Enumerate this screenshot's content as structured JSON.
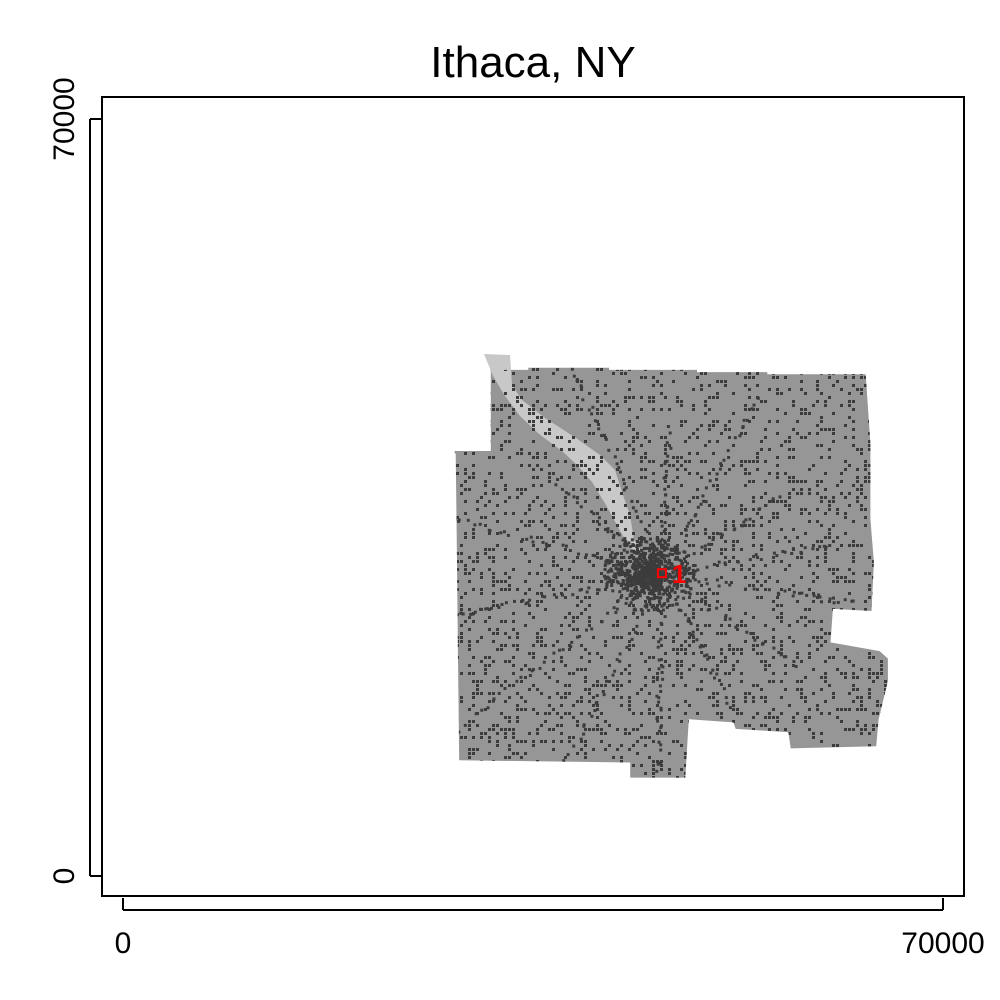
{
  "title": "Ithaca, NY",
  "axes": {
    "x": {
      "min": 0,
      "max": 70000,
      "ticks": [
        "0",
        "70000"
      ]
    },
    "y": {
      "min": 0,
      "max": 70000,
      "ticks": [
        "0",
        "70000"
      ]
    }
  },
  "marker": {
    "label": "1",
    "color": "#ff0000"
  },
  "colors": {
    "region_fill": "#969696",
    "developed": "#3c3c3c",
    "lake": "#c8c8c8",
    "frame": "#000000"
  },
  "chart_data": {
    "type": "map",
    "title": "Ithaca, NY",
    "xlim": [
      0,
      70000
    ],
    "ylim": [
      0,
      70000
    ],
    "xticks": [
      0,
      70000
    ],
    "yticks": [
      0,
      70000
    ],
    "point": {
      "label": "1",
      "x": 46000,
      "y": 28000
    },
    "region_outline": [
      [
        31400,
        46800
      ],
      [
        34600,
        46800
      ],
      [
        34600,
        47000
      ],
      [
        41500,
        47000
      ],
      [
        41500,
        46800
      ],
      [
        49000,
        46800
      ],
      [
        49000,
        46600
      ],
      [
        55000,
        46600
      ],
      [
        55000,
        46400
      ],
      [
        63400,
        46400
      ],
      [
        63800,
        40000
      ],
      [
        63800,
        33000
      ],
      [
        64100,
        29000
      ],
      [
        63900,
        24500
      ],
      [
        60600,
        24700
      ],
      [
        60400,
        21600
      ],
      [
        64600,
        20800
      ],
      [
        65300,
        20100
      ],
      [
        65300,
        18000
      ],
      [
        64500,
        14500
      ],
      [
        64300,
        12000
      ],
      [
        57000,
        11800
      ],
      [
        56800,
        13300
      ],
      [
        52300,
        13600
      ],
      [
        52100,
        14200
      ],
      [
        48300,
        14500
      ],
      [
        48000,
        9100
      ],
      [
        43300,
        9100
      ],
      [
        43300,
        10500
      ],
      [
        28700,
        10700
      ],
      [
        28600,
        20000
      ],
      [
        28500,
        30000
      ],
      [
        28400,
        39000
      ],
      [
        28300,
        39200
      ],
      [
        28300,
        39300
      ],
      [
        31400,
        39300
      ]
    ]
  }
}
